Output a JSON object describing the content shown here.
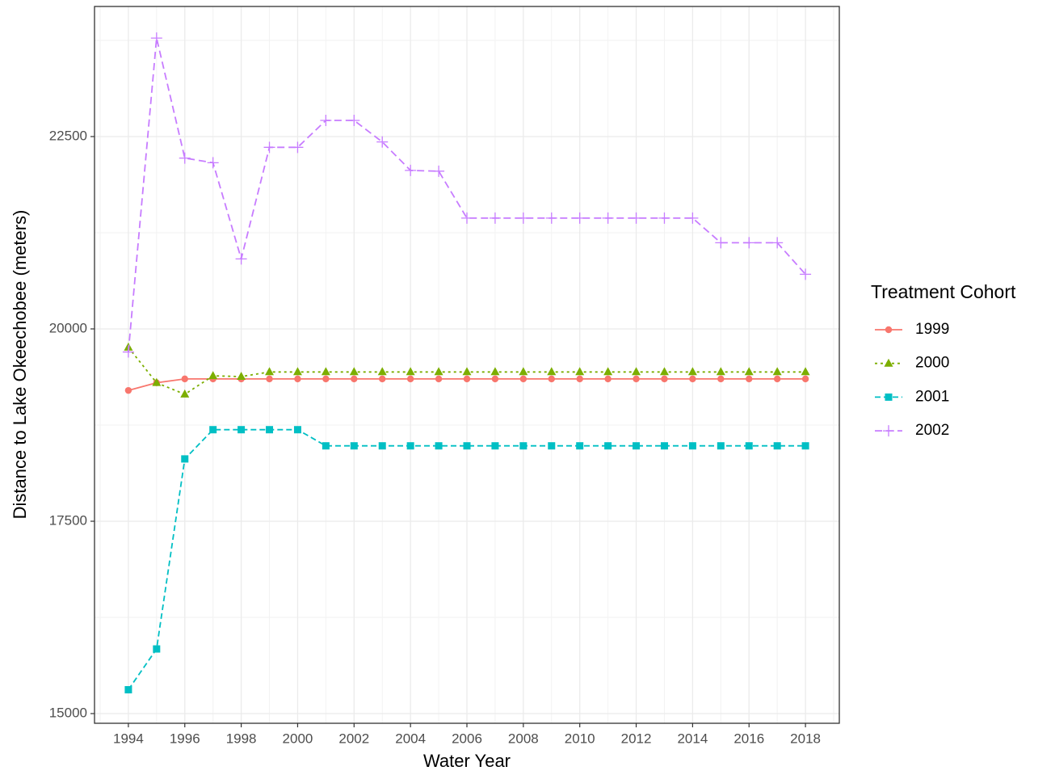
{
  "chart_data": {
    "type": "line",
    "x_label": "Water Year",
    "y_label": "Distance to Lake Okeechobee (meters)",
    "legend_title": "Treatment Cohort",
    "legend_position": "right",
    "grid": true,
    "xlim": [
      1992.8,
      2019.2
    ],
    "ylim": [
      14874,
      24191
    ],
    "xticks": [
      1994,
      1996,
      1998,
      2000,
      2002,
      2004,
      2006,
      2008,
      2010,
      2012,
      2014,
      2016,
      2018
    ],
    "yticks": [
      15000,
      17500,
      20000,
      22500
    ],
    "x": [
      1994,
      1995,
      1996,
      1997,
      1998,
      1999,
      2000,
      2001,
      2002,
      2003,
      2004,
      2005,
      2006,
      2007,
      2008,
      2009,
      2010,
      2011,
      2012,
      2013,
      2014,
      2015,
      2016,
      2017,
      2018
    ],
    "series": [
      {
        "name": "1999",
        "color": "#F8766D",
        "marker": "circle",
        "dash": "none",
        "values": [
          19200,
          19300,
          19350,
          19350,
          19350,
          19350,
          19350,
          19350,
          19350,
          19350,
          19350,
          19350,
          19350,
          19350,
          19350,
          19350,
          19350,
          19350,
          19350,
          19350,
          19350,
          19350,
          19350,
          19350,
          19350
        ]
      },
      {
        "name": "2000",
        "color": "#7CAE00",
        "marker": "triangle",
        "dash": "3,4",
        "values": [
          19760,
          19300,
          19150,
          19390,
          19380,
          19440,
          19440,
          19440,
          19440,
          19440,
          19440,
          19440,
          19440,
          19440,
          19440,
          19440,
          19440,
          19440,
          19440,
          19440,
          19440,
          19440,
          19440,
          19440,
          19440
        ]
      },
      {
        "name": "2001",
        "color": "#00BFC4",
        "marker": "square",
        "dash": "7,4",
        "values": [
          15310,
          15840,
          18310,
          18690,
          18690,
          18690,
          18690,
          18480,
          18480,
          18480,
          18480,
          18480,
          18480,
          18480,
          18480,
          18480,
          18480,
          18480,
          18480,
          18480,
          18480,
          18480,
          18480,
          18480,
          18480
        ]
      },
      {
        "name": "2002",
        "color": "#C77CFF",
        "marker": "plus",
        "dash": "9,5",
        "values": [
          19700,
          23780,
          22220,
          22160,
          20910,
          22360,
          22360,
          22710,
          22710,
          22430,
          22060,
          22050,
          21440,
          21440,
          21440,
          21440,
          21440,
          21440,
          21440,
          21440,
          21440,
          21120,
          21120,
          21120,
          20710
        ]
      }
    ]
  }
}
